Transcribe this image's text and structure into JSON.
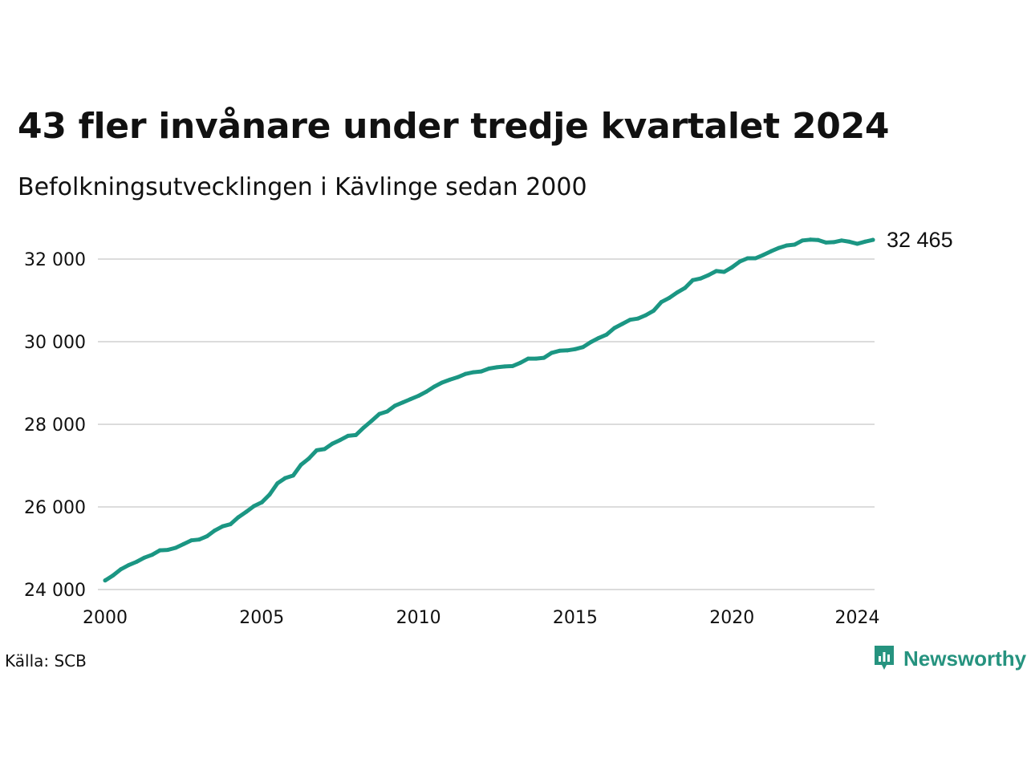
{
  "title": "43 fler invånare under tredje kvartalet 2024",
  "subtitle": "Befolkningsutvecklingen i Kävlinge sedan 2000",
  "source": "Källa: SCB",
  "brand": {
    "name": "Newsworthy",
    "color": "#26937f",
    "logo_icon": "newsworthy-logo-icon"
  },
  "colors": {
    "line": "#1b9683",
    "grid": "#dcdcdc",
    "text": "#111111"
  },
  "chart_data": {
    "type": "line",
    "title": "43 fler invånare under tredje kvartalet 2024",
    "subtitle": "Befolkningsutvecklingen i Kävlinge sedan 2000",
    "xlabel": "",
    "ylabel": "",
    "xlim": [
      2000,
      2024.5
    ],
    "ylim": [
      24000,
      32500
    ],
    "x_ticks": [
      2000,
      2005,
      2010,
      2015,
      2020,
      2024
    ],
    "x_tick_labels": [
      "2000",
      "2005",
      "2010",
      "2015",
      "2020",
      "2024"
    ],
    "y_ticks": [
      24000,
      26000,
      28000,
      30000,
      32000
    ],
    "y_tick_labels": [
      "24 000",
      "26 000",
      "28 000",
      "30 000",
      "32 000"
    ],
    "grid": "horizontal",
    "legend": "none",
    "end_label": "32 465",
    "series": [
      {
        "x": [
          2000.0,
          2000.25,
          2000.5,
          2000.75,
          2001.0,
          2001.25,
          2001.5,
          2001.75,
          2002.0,
          2002.25,
          2002.5,
          2002.75,
          2003.0,
          2003.25,
          2003.5,
          2003.75,
          2004.0,
          2004.25,
          2004.5,
          2004.75,
          2005.0,
          2005.25,
          2005.5,
          2005.75,
          2006.0,
          2006.25,
          2006.5,
          2006.75,
          2007.0,
          2007.25,
          2007.5,
          2007.75,
          2008.0,
          2008.25,
          2008.5,
          2008.75,
          2009.0,
          2009.25,
          2009.5,
          2009.75,
          2010.0,
          2010.25,
          2010.5,
          2010.75,
          2011.0,
          2011.25,
          2011.5,
          2011.75,
          2012.0,
          2012.25,
          2012.5,
          2012.75,
          2013.0,
          2013.25,
          2013.5,
          2013.75,
          2014.0,
          2014.25,
          2014.5,
          2014.75,
          2015.0,
          2015.25,
          2015.5,
          2015.75,
          2016.0,
          2016.25,
          2016.5,
          2016.75,
          2017.0,
          2017.25,
          2017.5,
          2017.75,
          2018.0,
          2018.25,
          2018.5,
          2018.75,
          2019.0,
          2019.25,
          2019.5,
          2019.75,
          2020.0,
          2020.25,
          2020.5,
          2020.75,
          2021.0,
          2021.25,
          2021.5,
          2021.75,
          2022.0,
          2022.25,
          2022.5,
          2022.75,
          2023.0,
          2023.25,
          2023.5,
          2023.75,
          2024.0,
          2024.25,
          2024.5
        ],
        "values": [
          24220,
          24340,
          24490,
          24590,
          24670,
          24770,
          24840,
          24950,
          24960,
          25010,
          25100,
          25190,
          25210,
          25290,
          25430,
          25530,
          25580,
          25750,
          25880,
          26020,
          26110,
          26300,
          26570,
          26700,
          26760,
          27020,
          27170,
          27370,
          27400,
          27530,
          27620,
          27720,
          27740,
          27920,
          28080,
          28250,
          28310,
          28450,
          28530,
          28610,
          28690,
          28790,
          28910,
          29010,
          29080,
          29140,
          29220,
          29260,
          29280,
          29350,
          29380,
          29400,
          29410,
          29490,
          29590,
          29590,
          29610,
          29730,
          29780,
          29790,
          29820,
          29870,
          29990,
          30090,
          30170,
          30330,
          30430,
          30530,
          30560,
          30640,
          30750,
          30960,
          31060,
          31190,
          31300,
          31490,
          31530,
          31610,
          31710,
          31690,
          31800,
          31940,
          32020,
          32020,
          32100,
          32190,
          32270,
          32330,
          32350,
          32450,
          32470,
          32460,
          32400,
          32410,
          32450,
          32420,
          32370,
          32422,
          32465
        ]
      }
    ]
  }
}
